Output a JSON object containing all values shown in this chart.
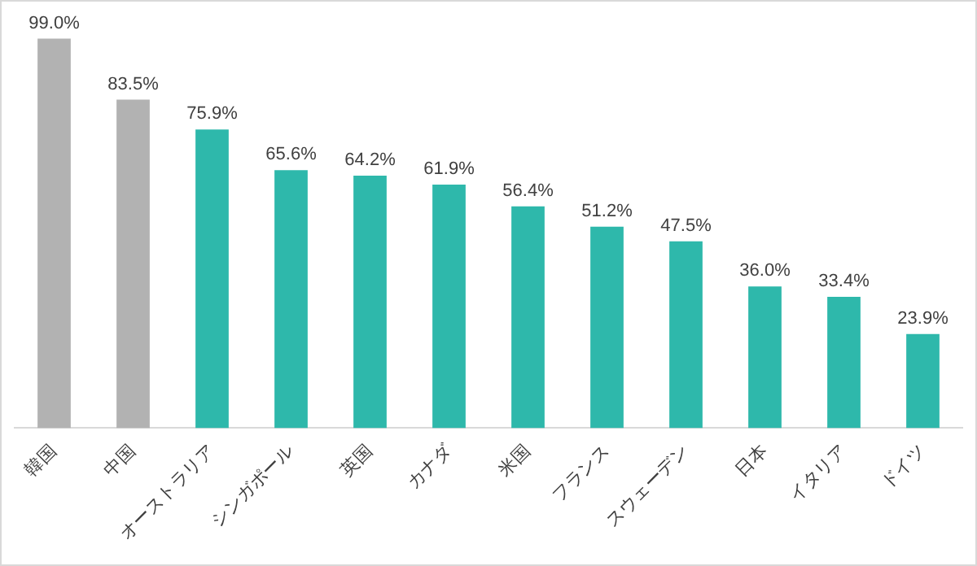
{
  "chart_data": {
    "type": "bar",
    "categories": [
      "韓国",
      "中国",
      "オーストラリア",
      "シンガポール",
      "英国",
      "カナダ",
      "米国",
      "フランス",
      "スウェーデン",
      "日本",
      "イタリア",
      "ドイツ"
    ],
    "values": [
      99.0,
      83.5,
      75.9,
      65.6,
      64.2,
      61.9,
      56.4,
      51.2,
      47.5,
      36.0,
      33.4,
      23.9
    ],
    "value_labels": [
      "99.0%",
      "83.5%",
      "75.9%",
      "65.6%",
      "64.2%",
      "61.9%",
      "56.4%",
      "51.2%",
      "47.5%",
      "36.0%",
      "33.4%",
      "23.9%"
    ],
    "colors": [
      "#b2b2b2",
      "#b2b2b2",
      "#2eb8ab",
      "#2eb8ab",
      "#2eb8ab",
      "#2eb8ab",
      "#2eb8ab",
      "#2eb8ab",
      "#2eb8ab",
      "#2eb8ab",
      "#2eb8ab",
      "#2eb8ab"
    ],
    "grid": false,
    "legend": false
  }
}
